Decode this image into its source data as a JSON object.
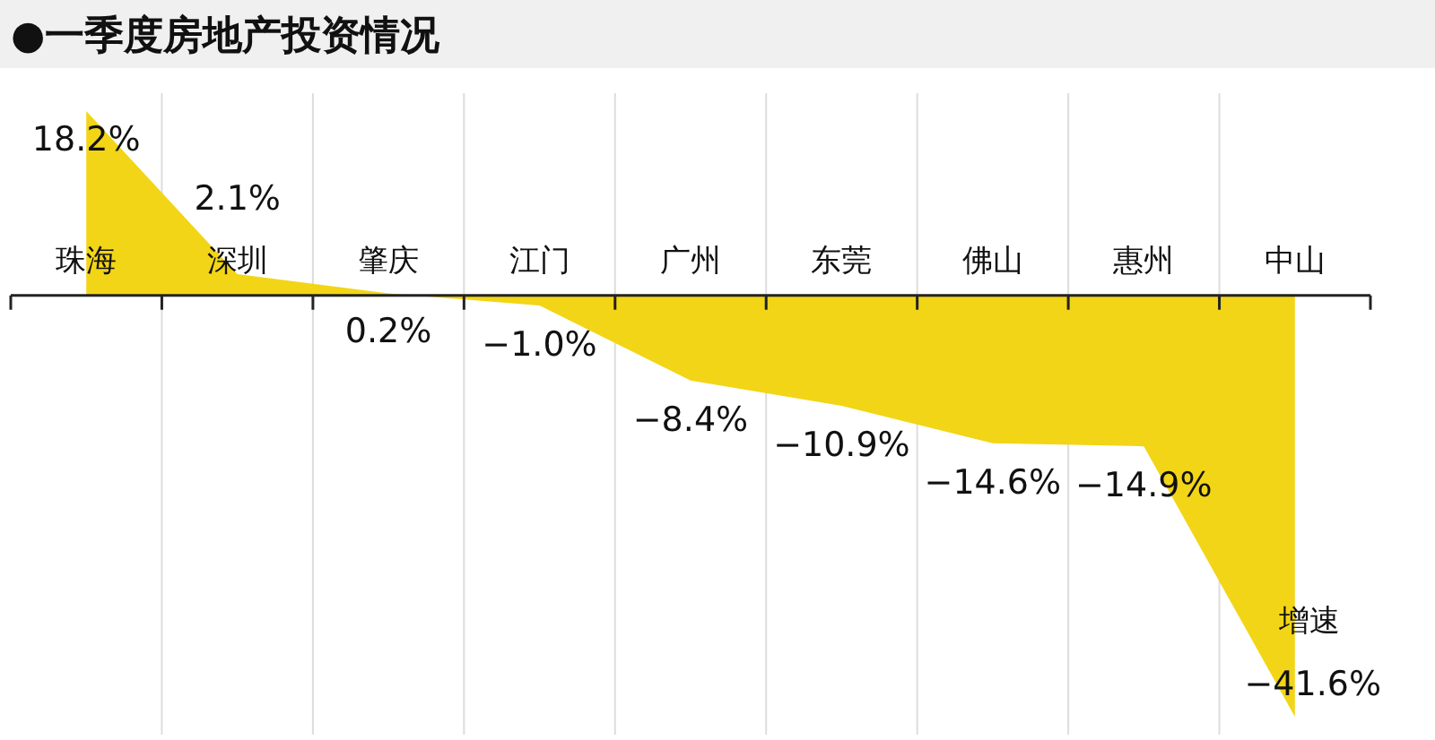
{
  "chart_data": {
    "type": "area",
    "title": "●一季度房地产投资情况",
    "categories": [
      "珠海",
      "深圳",
      "肇庆",
      "江门",
      "广州",
      "东莞",
      "佛山",
      "惠州",
      "中山"
    ],
    "series": [
      {
        "name": "增速",
        "color": "#f2d516",
        "values": [
          18.2,
          2.1,
          0.2,
          -1.0,
          -8.4,
          -10.9,
          -14.6,
          -14.9,
          -41.6
        ],
        "value_labels": [
          "18.2%",
          "2.1%",
          "0.2%",
          "−1.0%",
          "−8.4%",
          "−10.9%",
          "−14.6%",
          "−14.9%",
          "−41.6%"
        ]
      }
    ],
    "grid": "x",
    "legend": false
  }
}
